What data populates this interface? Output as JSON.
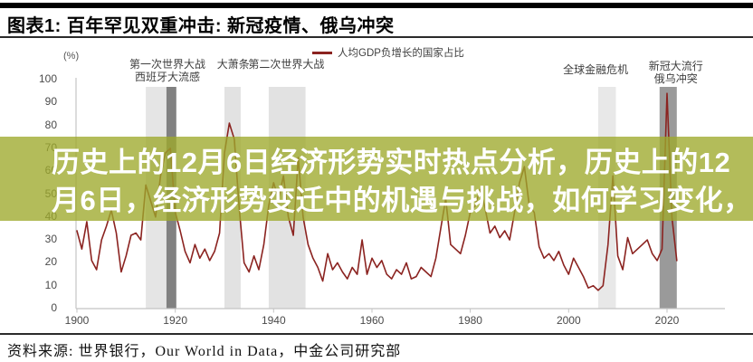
{
  "header": {
    "title": "图表1: 百年罕见双重冲击: 新冠疫情、俄乌冲突"
  },
  "overlay": {
    "lines": [
      "历史上的12月6日经济形势实时热点分析，历史上的12",
      "月6日，经济形势变迁中的机遇与挑战，如何学习变化，"
    ],
    "bg_color": "#9ea92c",
    "bg_opacity": 0.78,
    "text_color": "#ffffff"
  },
  "footer": {
    "source": "资料来源: 世界银行，Our World in Data，中金公司研究部"
  },
  "chart_data": {
    "type": "line",
    "legend_label": "人均GDP负增长的国家占比",
    "legend_position": "top",
    "unit_label": "(%)",
    "grid": false,
    "ylim": [
      0,
      100
    ],
    "yticks": [
      0,
      10,
      20,
      30,
      40,
      50,
      60,
      70,
      80,
      90,
      100
    ],
    "xticks": [
      1900,
      1920,
      1940,
      1960,
      1980,
      2000,
      2020
    ],
    "x_start": 1900,
    "x_step": 1,
    "x_end": 2022,
    "values": [
      34,
      26,
      38,
      21,
      17,
      30,
      36,
      43,
      33,
      16,
      23,
      32,
      33,
      30,
      54,
      47,
      40,
      58,
      68,
      70,
      42,
      34,
      25,
      20,
      28,
      22,
      26,
      21,
      25,
      33,
      68,
      81,
      74,
      44,
      20,
      16,
      23,
      17,
      28,
      45,
      55,
      48,
      58,
      40,
      32,
      66,
      40,
      28,
      22,
      18,
      12,
      24,
      17,
      20,
      16,
      13,
      18,
      15,
      30,
      15,
      22,
      18,
      21,
      15,
      13,
      17,
      15,
      20,
      13,
      14,
      18,
      16,
      14,
      22,
      35,
      48,
      28,
      26,
      24,
      32,
      42,
      45,
      52,
      44,
      33,
      36,
      31,
      34,
      30,
      42,
      55,
      62,
      45,
      42,
      27,
      22,
      24,
      21,
      25,
      19,
      15,
      22,
      18,
      14,
      9,
      10,
      8,
      10,
      28,
      58,
      23,
      17,
      31,
      24,
      26,
      28,
      30,
      24,
      21,
      26,
      94,
      40,
      21
    ],
    "bands": [
      {
        "id": "ww1",
        "color": "#e5e5e5",
        "from": 1914,
        "to": 1918.2
      },
      {
        "id": "spanish-flu",
        "color": "#818181",
        "from": 1918.2,
        "to": 1920.2
      },
      {
        "id": "great-depression",
        "color": "#e2e2e2",
        "from": 1930,
        "to": 1933.3
      },
      {
        "id": "ww2",
        "color": "#e2e2e2",
        "from": 1939,
        "to": 1946.5
      },
      {
        "id": "gfc",
        "color": "#e8e8e8",
        "from": 2006,
        "to": 2009.6
      },
      {
        "id": "covid",
        "color": "#9a9a9a",
        "from": 2018.5,
        "to": 2022
      }
    ],
    "annotations": [
      {
        "id": "ww1-flu",
        "lines": [
          "第一次世界大战",
          "西班牙大流感"
        ],
        "year": 1918.4,
        "top": 65
      },
      {
        "id": "great-depression",
        "lines": [
          "大萧条"
        ],
        "year": 1931.8,
        "top": 65
      },
      {
        "id": "ww2",
        "lines": [
          "第二次世界大战"
        ],
        "year": 1942.6,
        "top": 65
      },
      {
        "id": "gfc",
        "lines": [
          "全球金融危机"
        ],
        "year": 2005.5,
        "top": 71
      },
      {
        "id": "covid-ukraine",
        "lines": [
          "新冠大流行",
          "俄乌冲突"
        ],
        "year": 2021.8,
        "top": 67
      }
    ],
    "colors": {
      "line": "#8b2320",
      "axis": "#c4c4c4",
      "tick_text": "#4a4a4a",
      "annotation_text": "#3f3f3f"
    }
  }
}
